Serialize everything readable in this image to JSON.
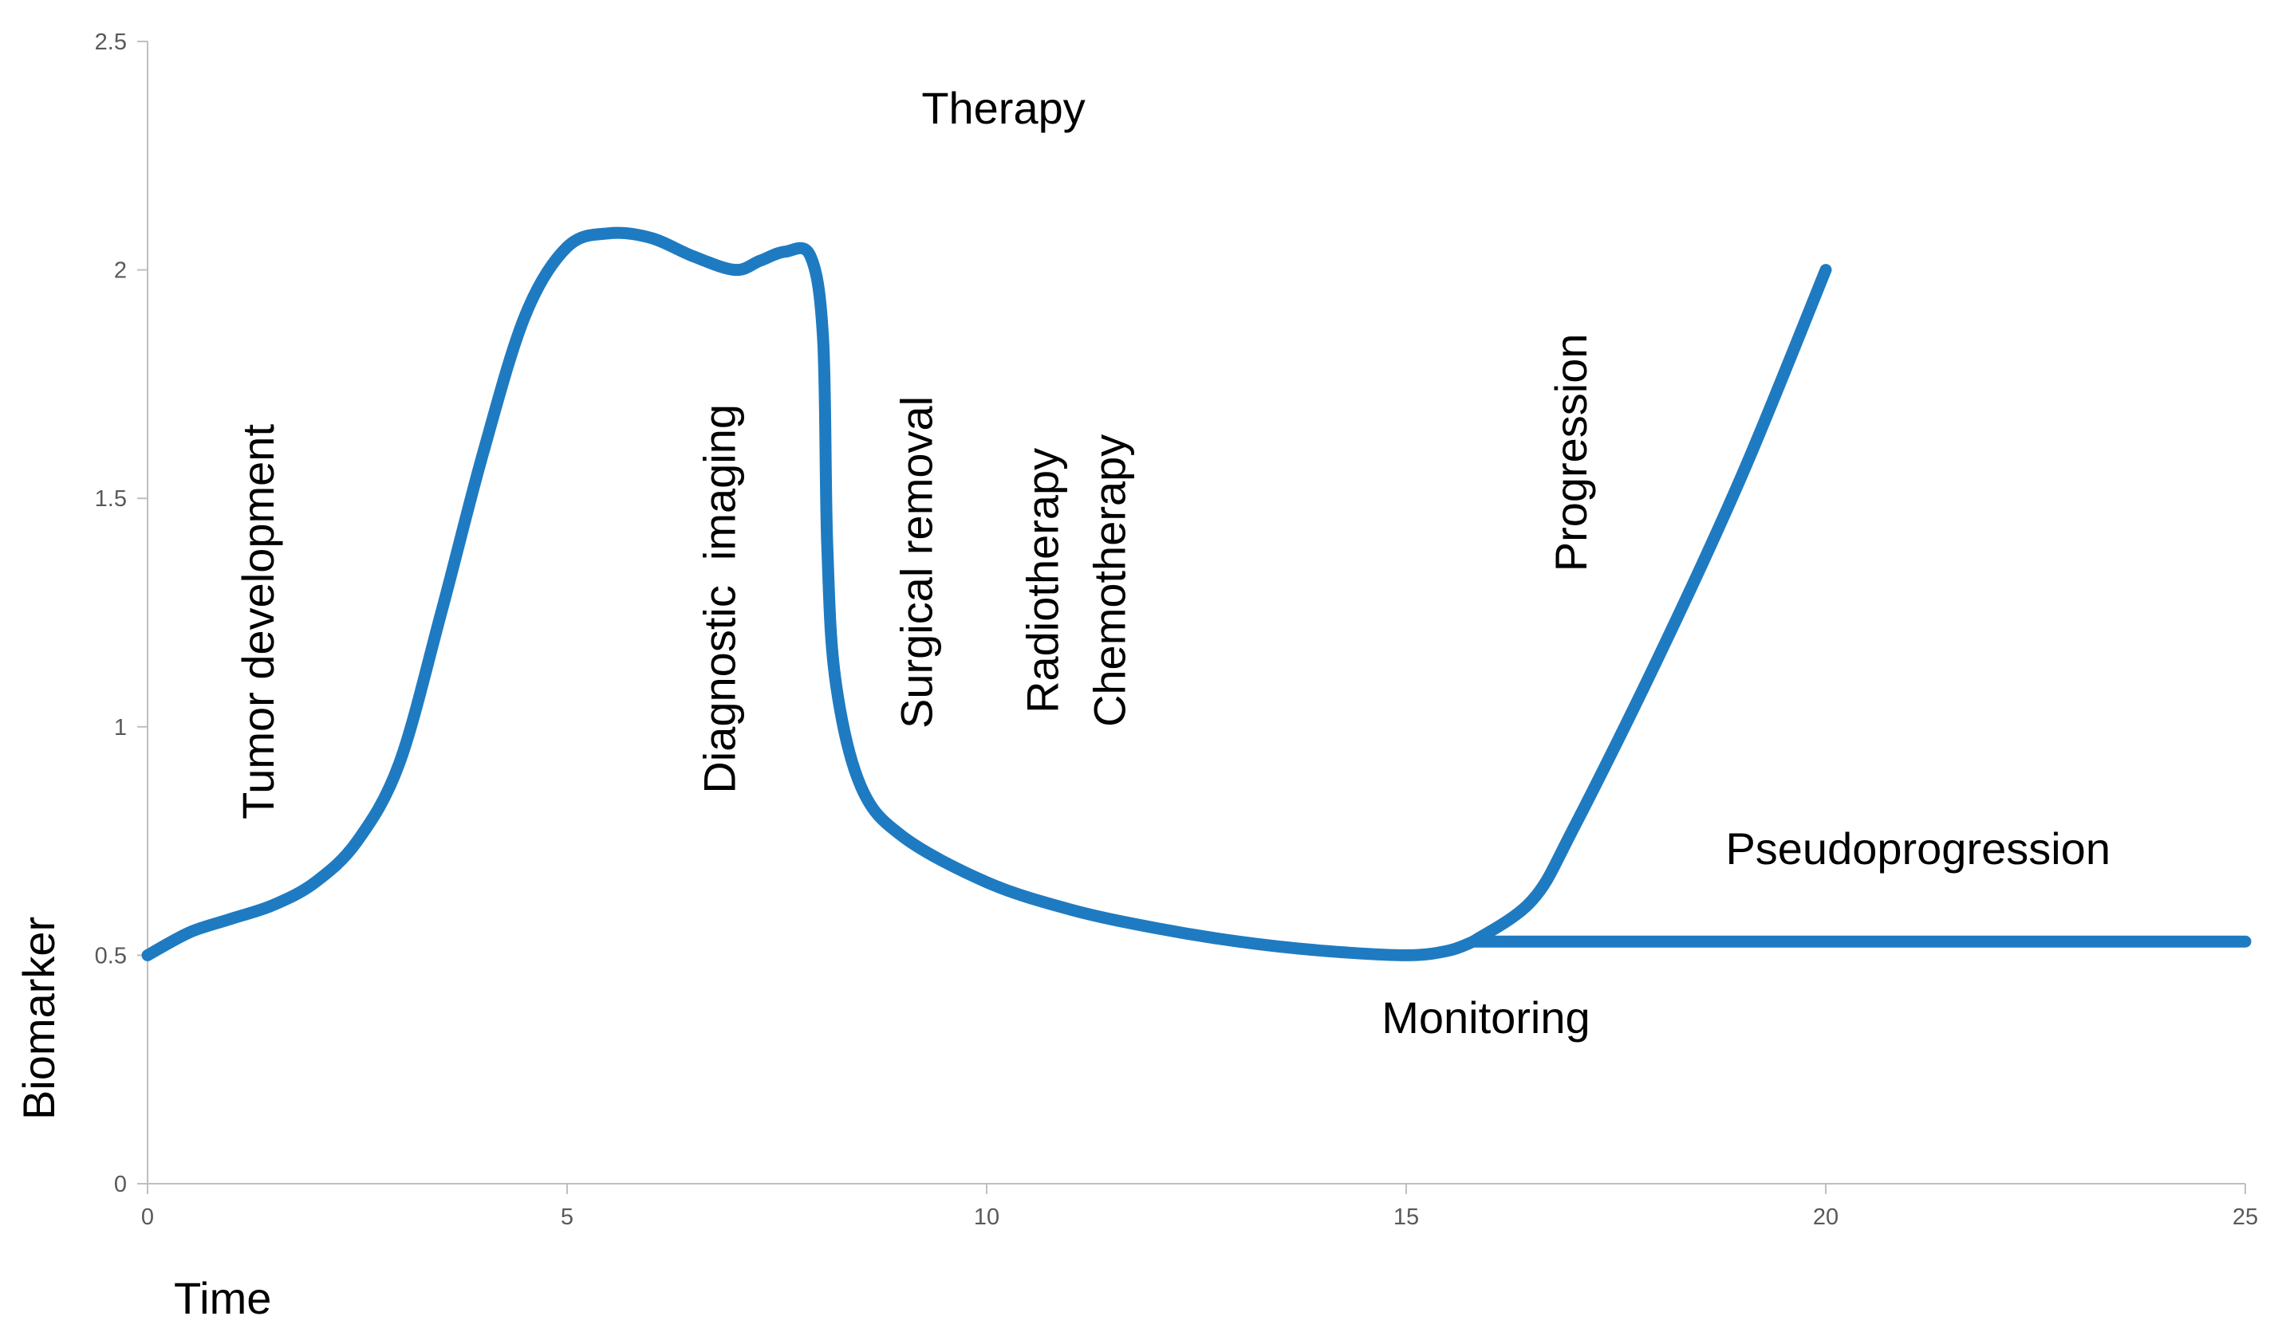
{
  "chart_data": {
    "type": "line",
    "xlabel": "Time",
    "ylabel": "Biomarker",
    "xlim": [
      0,
      25
    ],
    "ylim": [
      0,
      2.5
    ],
    "x_ticks": [
      "0",
      "5",
      "10",
      "15",
      "20",
      "25"
    ],
    "y_ticks": [
      "0",
      "0.5",
      "1",
      "1.5",
      "2",
      "2.5"
    ],
    "grid": false,
    "legend": "none",
    "series": [
      {
        "color": "#1f7bc1",
        "points": [
          [
            0,
            0.5
          ],
          [
            0.5,
            0.55
          ],
          [
            1,
            0.58
          ],
          [
            1.5,
            0.61
          ],
          [
            2,
            0.66
          ],
          [
            2.5,
            0.75
          ],
          [
            3,
            0.92
          ],
          [
            3.5,
            1.25
          ],
          [
            4,
            1.6
          ],
          [
            4.5,
            1.9
          ],
          [
            5,
            2.05
          ],
          [
            5.5,
            2.08
          ],
          [
            6,
            2.07
          ],
          [
            6.5,
            2.03
          ],
          [
            7,
            2.0
          ],
          [
            7.3,
            2.02
          ],
          [
            7.6,
            2.04
          ],
          [
            7.9,
            2.03
          ],
          [
            8.05,
            1.85
          ],
          [
            8.1,
            1.4
          ],
          [
            8.2,
            1.1
          ],
          [
            8.5,
            0.87
          ],
          [
            9,
            0.76
          ],
          [
            10,
            0.66
          ],
          [
            11,
            0.6
          ],
          [
            12,
            0.56
          ],
          [
            13,
            0.53
          ],
          [
            14,
            0.51
          ],
          [
            15,
            0.5
          ],
          [
            15.5,
            0.51
          ],
          [
            15.8,
            0.53
          ]
        ]
      },
      {
        "color": "#1f7bc1",
        "points": [
          [
            15.8,
            0.53
          ],
          [
            16.5,
            0.62
          ],
          [
            17,
            0.78
          ],
          [
            18,
            1.15
          ],
          [
            19,
            1.55
          ],
          [
            20,
            2.0
          ]
        ]
      },
      {
        "color": "#1f7bc1",
        "points": [
          [
            15.8,
            0.53
          ],
          [
            25,
            0.53
          ]
        ]
      }
    ],
    "annotations": [
      {
        "text": "Therapy",
        "x": 10.2,
        "y": 2.32,
        "rotate": false
      },
      {
        "text": "Tumor development",
        "x": 1.5,
        "y": 1.23,
        "rotate": true
      },
      {
        "text": "Diagnostic  imaging",
        "x": 7.0,
        "y": 1.28,
        "rotate": true
      },
      {
        "text": "Surgical removal",
        "x": 9.35,
        "y": 1.36,
        "rotate": true
      },
      {
        "text": "Radiotherapy",
        "x": 10.85,
        "y": 1.32,
        "rotate": true
      },
      {
        "text": "Chemotherapy",
        "x": 11.65,
        "y": 1.32,
        "rotate": true
      },
      {
        "text": "Progression",
        "x": 17.15,
        "y": 1.6,
        "rotate": true
      },
      {
        "text": "Pseudoprogression",
        "x": 21.1,
        "y": 0.7,
        "rotate": false
      },
      {
        "text": "Monitoring",
        "x": 15.95,
        "y": 0.33,
        "rotate": false
      }
    ]
  }
}
